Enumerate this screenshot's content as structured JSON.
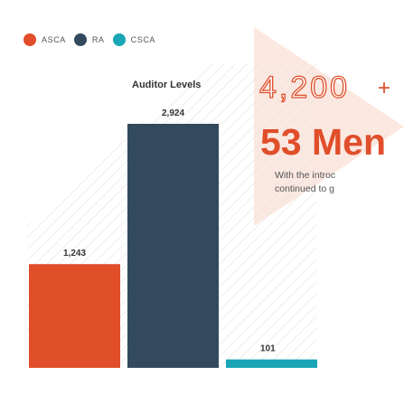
{
  "legend": {
    "items": [
      {
        "label": "ASCA",
        "color": "#e04e2a"
      },
      {
        "label": "RA",
        "color": "#334a5e"
      },
      {
        "label": "CSCA",
        "color": "#1aa6b7"
      }
    ]
  },
  "headline": {
    "count": "4,200",
    "plus": "+",
    "members_number": "53",
    "members_word": "Men",
    "intro_lines": [
      "With the introc",
      "continued to g"
    ]
  },
  "colors": {
    "accent": "#e04e2a",
    "navy": "#334a5e",
    "teal": "#1aa6b7",
    "hatch": "#e3e3e3",
    "triangle": "#fbe8e1"
  },
  "chart_data": {
    "type": "bar",
    "title": "Auditor Levels",
    "categories": [
      "ASCA",
      "RA",
      "CSCA"
    ],
    "values": [
      1243,
      2924,
      101
    ],
    "value_labels": [
      "1,243",
      "2,924",
      "101"
    ],
    "colors": [
      "#e04e2a",
      "#334a5e",
      "#1aa6b7"
    ],
    "ylim": [
      0,
      2924
    ],
    "xlabel": "",
    "ylabel": "",
    "grid": false,
    "legend_position": "top-left"
  }
}
